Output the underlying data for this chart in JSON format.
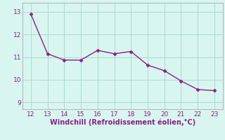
{
  "x": [
    12,
    13,
    14,
    15,
    16,
    17,
    18,
    19,
    20,
    21,
    22,
    23
  ],
  "y": [
    12.9,
    11.15,
    10.87,
    10.87,
    11.3,
    11.15,
    11.25,
    10.65,
    10.4,
    9.95,
    9.57,
    9.52
  ],
  "line_color": "#882288",
  "marker": "D",
  "marker_size": 2.5,
  "background_color": "#d8f5f0",
  "grid_color": "#aaddcc",
  "xlabel": "Windchill (Refroidissement éolien,°C)",
  "xlabel_color": "#882288",
  "tick_color": "#882288",
  "spine_color": "#aaaaaa",
  "xlim": [
    11.5,
    23.5
  ],
  "ylim": [
    8.7,
    13.4
  ],
  "xticks": [
    12,
    13,
    14,
    15,
    16,
    17,
    18,
    19,
    20,
    21,
    22,
    23
  ],
  "yticks": [
    9,
    10,
    11,
    12,
    13
  ],
  "line_width": 1.0,
  "tick_labelsize": 6.5,
  "xlabel_fontsize": 7.0
}
